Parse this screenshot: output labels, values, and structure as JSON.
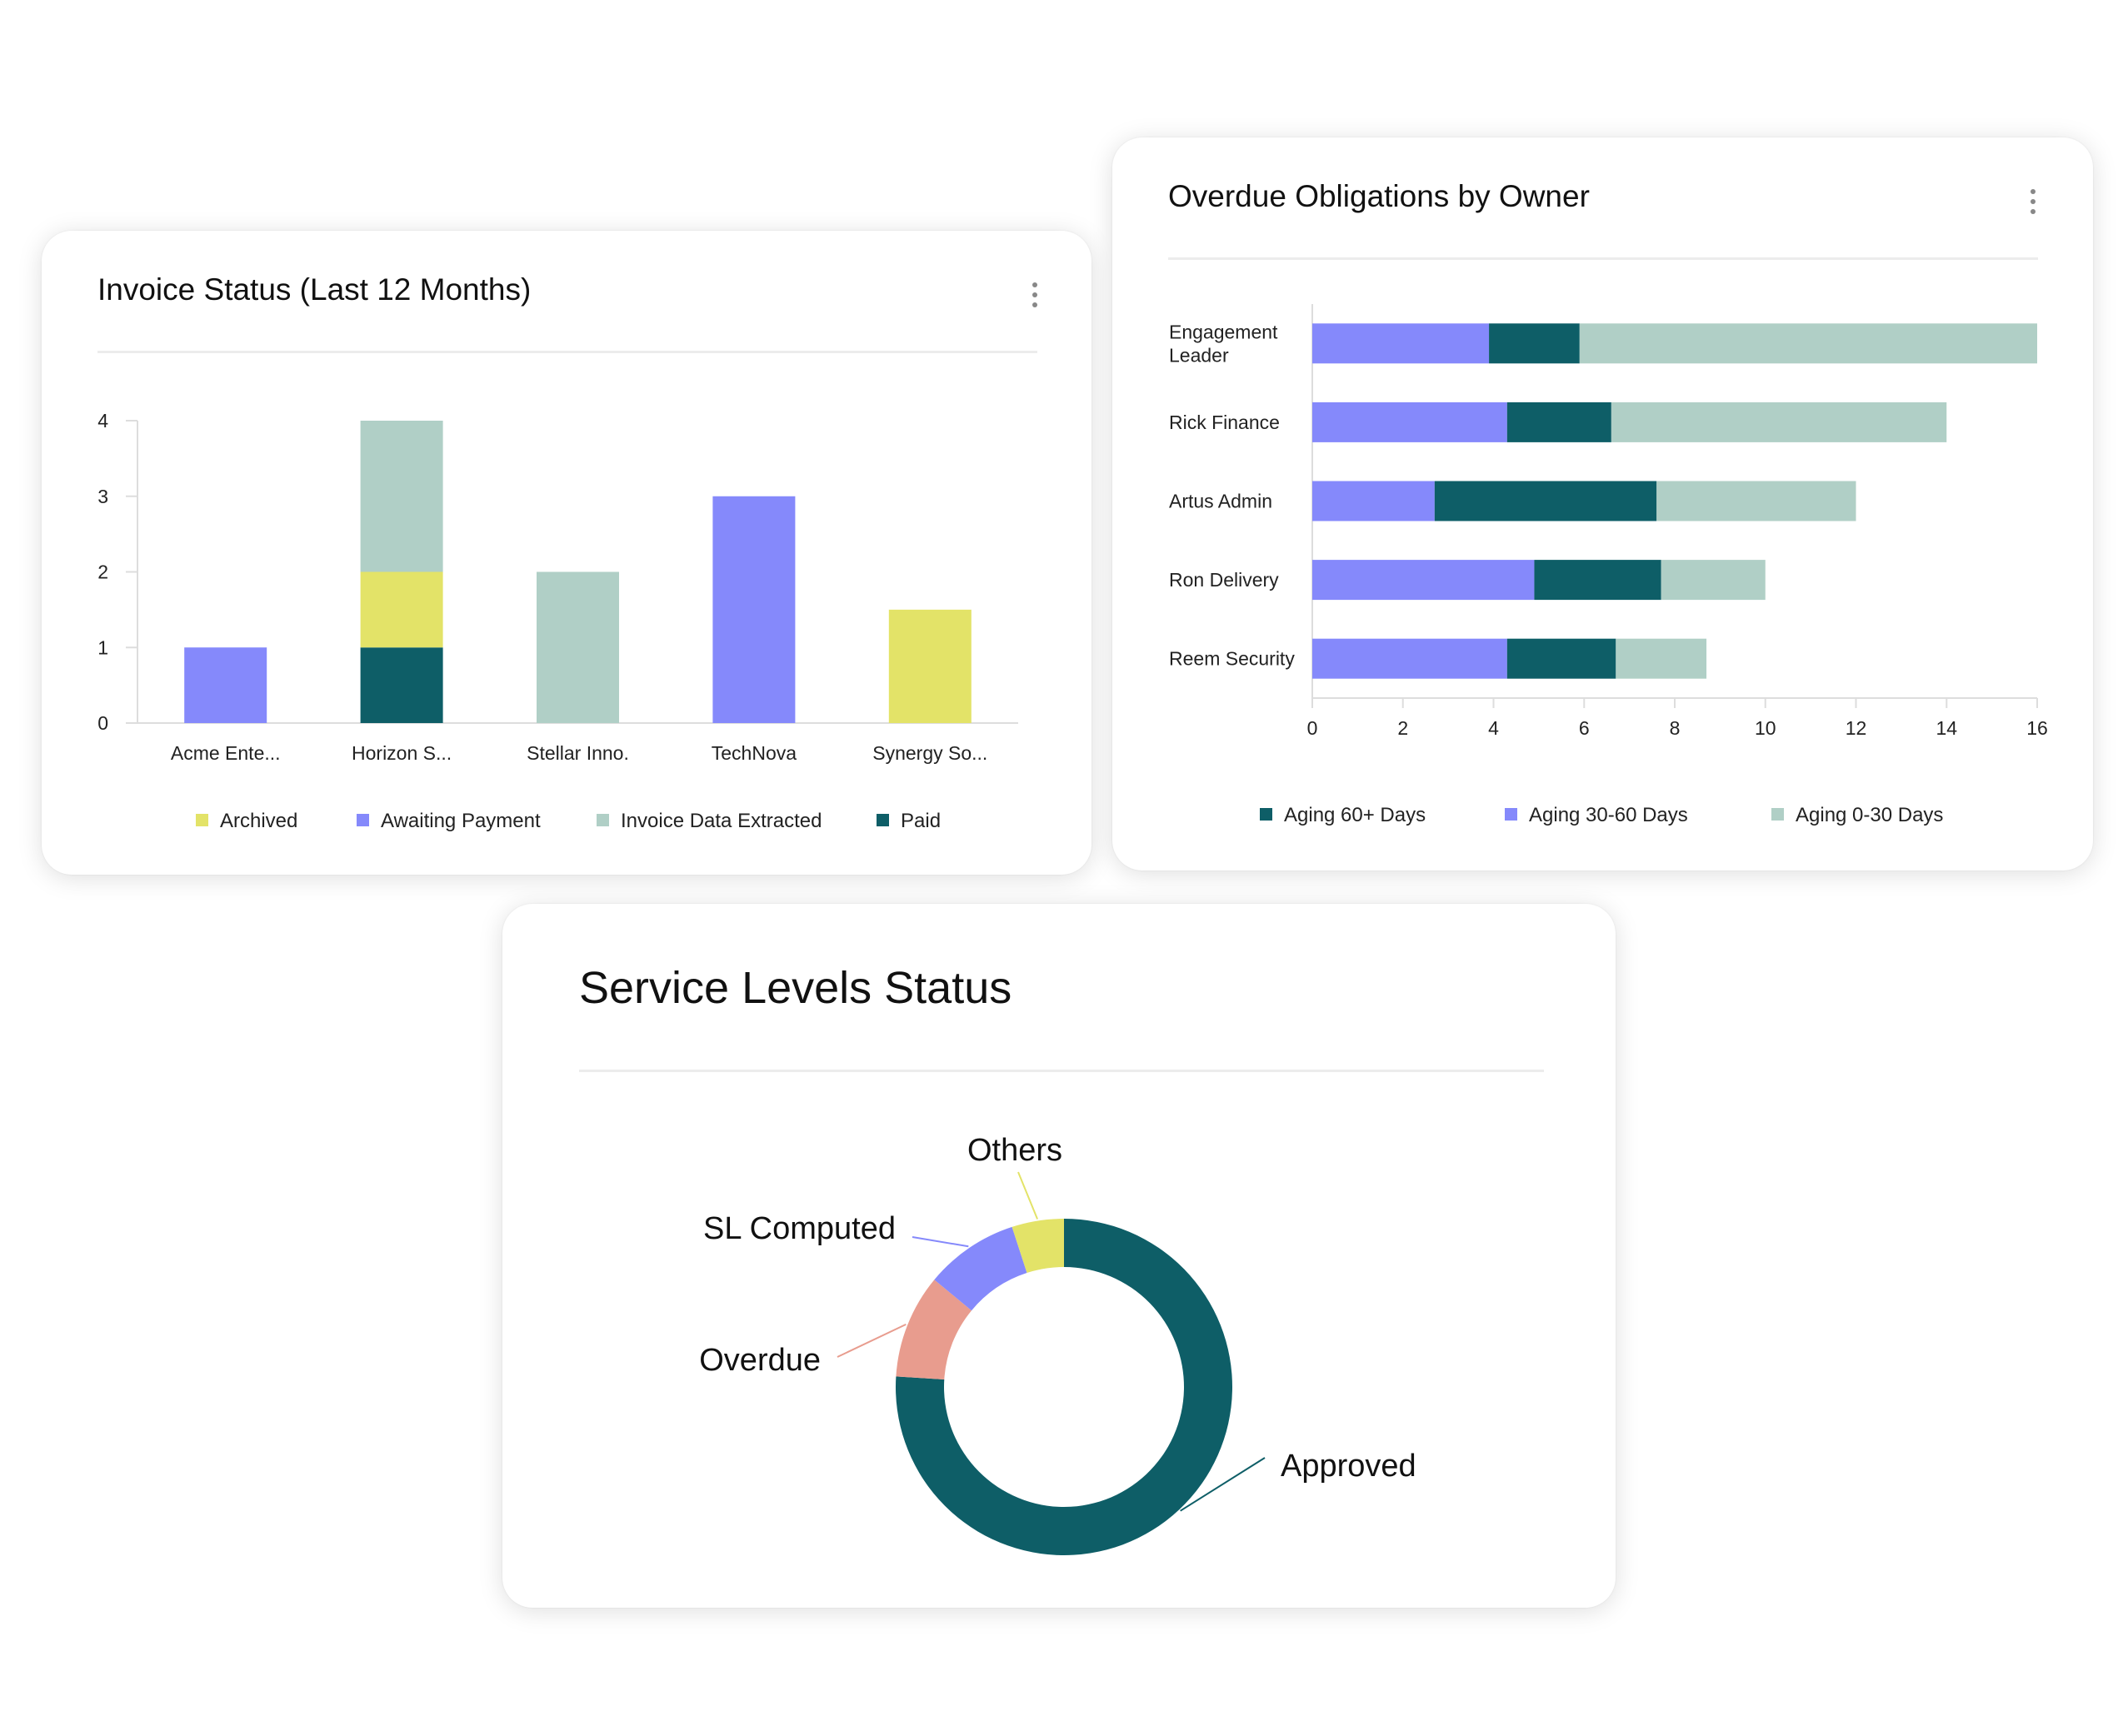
{
  "invoice_card": {
    "title": "Invoice Status (Last 12 Months)"
  },
  "overdue_card": {
    "title": "Overdue Obligations by Owner"
  },
  "service_card": {
    "title": "Service Levels Status"
  },
  "colors": {
    "archived": "#e3e368",
    "awaiting_payment": "#8589fb",
    "invoice_data_extracted": "#b0cfc6",
    "paid": "#0e5e67",
    "overdue": "#e89c8e",
    "axis": "#dddddd",
    "text": "#222222"
  },
  "chart_data": [
    {
      "id": "invoice-status",
      "type": "bar",
      "stacked": true,
      "title": "Invoice Status (Last 12 Months)",
      "categories": [
        "Acme Ente...",
        "Horizon S...",
        "Stellar Inno.",
        "TechNova",
        "Synergy So..."
      ],
      "yticks": [
        "0",
        "1",
        "2",
        "3",
        "4"
      ],
      "ylim": [
        0,
        4
      ],
      "legend_position": "bottom",
      "series": [
        {
          "name": "Paid",
          "color": "#0e5e67",
          "values": [
            0,
            1,
            0,
            0,
            0
          ]
        },
        {
          "name": "Archived",
          "color": "#e3e368",
          "values": [
            0,
            1,
            0,
            0,
            1.5
          ]
        },
        {
          "name": "Awaiting Payment",
          "color": "#8589fb",
          "values": [
            1,
            0,
            0,
            3,
            0
          ]
        },
        {
          "name": "Invoice Data Extracted",
          "color": "#b0cfc6",
          "values": [
            0,
            2,
            2,
            0,
            0
          ]
        }
      ],
      "legend": [
        {
          "name": "Archived",
          "color": "#e3e368"
        },
        {
          "name": "Awaiting Payment",
          "color": "#8589fb"
        },
        {
          "name": "Invoice Data Extracted",
          "color": "#b0cfc6"
        },
        {
          "name": "Paid",
          "color": "#0e5e67"
        }
      ]
    },
    {
      "id": "overdue-obligations",
      "type": "bar",
      "orientation": "horizontal",
      "stacked": true,
      "title": "Overdue Obligations by Owner",
      "categories": [
        "Engagement Leader",
        "Rick Finance",
        "Artus Admin",
        "Ron Delivery",
        "Reem Security"
      ],
      "category_lines": [
        [
          "Engagement",
          "Leader"
        ],
        [
          "Rick Finance"
        ],
        [
          "Artus Admin"
        ],
        [
          "Ron Delivery"
        ],
        [
          "Reem Security"
        ]
      ],
      "xticks": [
        "0",
        "2",
        "4",
        "6",
        "8",
        "10",
        "12",
        "14",
        "16"
      ],
      "xlim": [
        0,
        16
      ],
      "legend_position": "bottom",
      "series": [
        {
          "name": "Aging 30-60 Days",
          "color": "#8589fb",
          "values": [
            3.9,
            4.3,
            2.7,
            4.9,
            4.3
          ]
        },
        {
          "name": "Aging 60+ Days",
          "color": "#0e5e67",
          "values": [
            2.0,
            2.3,
            4.9,
            2.8,
            2.4
          ]
        },
        {
          "name": "Aging 0-30 Days",
          "color": "#b0cfc6",
          "values": [
            10.1,
            7.4,
            4.4,
            2.3,
            2.0
          ]
        }
      ],
      "legend": [
        {
          "name": "Aging 60+ Days",
          "color": "#0e5e67"
        },
        {
          "name": "Aging 30-60 Days",
          "color": "#8589fb"
        },
        {
          "name": "Aging 0-30 Days",
          "color": "#b0cfc6"
        }
      ]
    },
    {
      "id": "service-levels",
      "type": "pie",
      "donut": true,
      "title": "Service Levels Status",
      "slices": [
        {
          "name": "Approved",
          "value": 76,
          "color": "#0e5e67"
        },
        {
          "name": "Overdue",
          "value": 10,
          "color": "#e89c8e"
        },
        {
          "name": "SL Computed",
          "value": 9,
          "color": "#8589fb"
        },
        {
          "name": "Others",
          "value": 5,
          "color": "#e3e368"
        }
      ]
    }
  ]
}
